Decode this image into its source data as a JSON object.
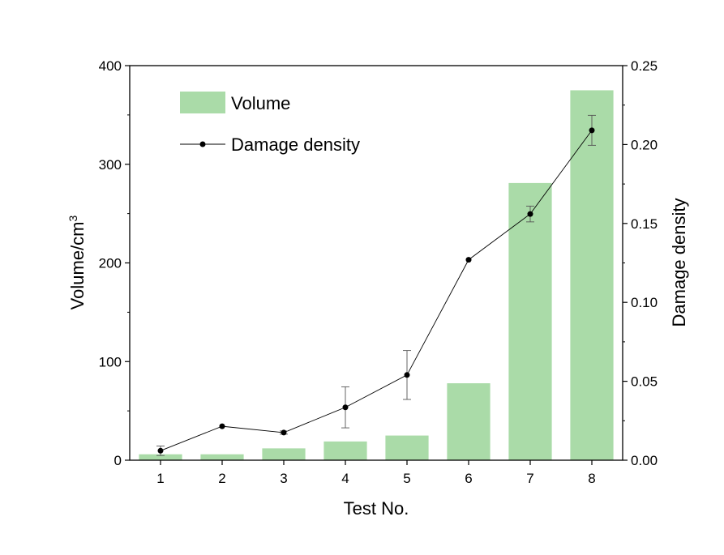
{
  "chart_data": {
    "type": "bar",
    "categories": [
      "1",
      "2",
      "3",
      "4",
      "5",
      "6",
      "7",
      "8"
    ],
    "series": [
      {
        "name": "Volume",
        "type": "bar",
        "axis": "left",
        "color": "#aadba8",
        "values": [
          6,
          6,
          12,
          19,
          25,
          78,
          281,
          375
        ]
      },
      {
        "name": "Damage density",
        "type": "line",
        "axis": "right",
        "color": "#000000",
        "values": [
          0.006,
          0.0215,
          0.0175,
          0.0335,
          0.054,
          0.127,
          0.156,
          0.209
        ],
        "error": [
          0.003,
          0.0,
          0.001,
          0.013,
          0.0155,
          0.0,
          0.005,
          0.0095
        ]
      }
    ],
    "xlabel": "Test No.",
    "ylabel": "Volume/cm",
    "ylabel_sup": "3",
    "y2label": "Damage density",
    "ylim": [
      0,
      400
    ],
    "y2lim": [
      0,
      0.25
    ],
    "yticks": [
      "0",
      "100",
      "200",
      "300",
      "400"
    ],
    "y2ticks": [
      "0.00",
      "0.05",
      "0.10",
      "0.15",
      "0.20",
      "0.25"
    ],
    "grid": false,
    "legend_position": "top-left"
  }
}
